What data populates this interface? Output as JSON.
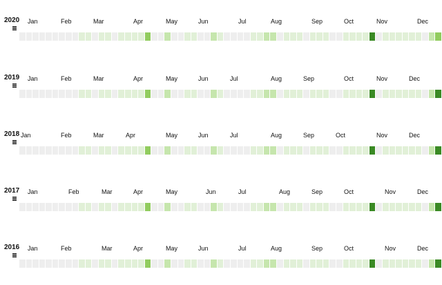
{
  "chart_data": {
    "type": "heatmap",
    "color_scale": [
      "#eeeeee",
      "#e1f0d7",
      "#c6e6ad",
      "#91cc5e",
      "#3a8a24"
    ],
    "years": [
      {
        "year": "2020",
        "months": [
          "Jan",
          "Feb",
          "Mar",
          "Apr",
          "May",
          "Jun",
          "Jul",
          "Aug",
          "Sep",
          "Oct",
          "Nov",
          "Dec"
        ],
        "values": [
          0,
          0,
          0,
          0,
          0,
          0,
          0,
          0,
          0,
          1,
          1,
          0,
          1,
          1,
          0,
          1,
          1,
          1,
          1,
          3,
          0,
          0,
          2,
          0,
          0,
          1,
          1,
          0,
          0,
          2,
          1,
          0,
          0,
          0,
          0,
          1,
          1,
          2,
          2,
          0,
          1,
          1,
          1,
          0,
          1,
          1,
          1,
          0,
          0,
          1,
          1,
          1,
          1,
          4,
          0,
          1,
          1,
          1,
          1,
          1,
          1,
          0,
          2,
          3
        ]
      },
      {
        "year": "2019",
        "months": [
          "Jan",
          "Feb",
          "Mar",
          "Apr",
          "May",
          "Jun",
          "Jul",
          "Aug",
          "Sep",
          "Oct",
          "Nov",
          "Dec"
        ],
        "values": [
          0,
          0,
          0,
          0,
          0,
          0,
          0,
          0,
          0,
          1,
          1,
          0,
          1,
          1,
          0,
          1,
          1,
          1,
          1,
          3,
          0,
          0,
          2,
          0,
          0,
          1,
          1,
          0,
          0,
          2,
          1,
          0,
          0,
          0,
          0,
          1,
          1,
          2,
          2,
          0,
          1,
          1,
          1,
          0,
          1,
          1,
          1,
          0,
          0,
          1,
          1,
          1,
          1,
          4,
          0,
          1,
          1,
          1,
          1,
          1,
          1,
          0,
          2,
          4
        ]
      },
      {
        "year": "2018",
        "months": [
          "Jan",
          "Feb",
          "Mar",
          "Apr",
          "May",
          "Jun",
          "Jul",
          "Aug",
          "Sep",
          "Oct",
          "Nov",
          "Dec"
        ],
        "values": [
          0,
          0,
          0,
          0,
          0,
          0,
          0,
          0,
          0,
          1,
          1,
          0,
          1,
          1,
          0,
          1,
          1,
          1,
          1,
          3,
          0,
          0,
          2,
          0,
          0,
          1,
          1,
          0,
          0,
          2,
          1,
          0,
          0,
          0,
          0,
          1,
          1,
          2,
          2,
          0,
          1,
          1,
          1,
          0,
          1,
          1,
          1,
          0,
          0,
          1,
          1,
          1,
          1,
          4,
          0,
          1,
          1,
          1,
          1,
          1,
          1,
          0,
          2,
          4
        ]
      },
      {
        "year": "2017",
        "months": [
          "Jan",
          "Feb",
          "Mar",
          "Apr",
          "May",
          "Jun",
          "Jul",
          "Aug",
          "Sep",
          "Oct",
          "Nov",
          "Dec"
        ],
        "values": [
          0,
          0,
          0,
          0,
          0,
          0,
          0,
          0,
          0,
          1,
          1,
          0,
          1,
          1,
          0,
          1,
          1,
          1,
          1,
          3,
          0,
          0,
          2,
          0,
          0,
          1,
          1,
          0,
          0,
          2,
          1,
          0,
          0,
          0,
          0,
          1,
          1,
          2,
          2,
          0,
          1,
          1,
          1,
          0,
          1,
          1,
          1,
          0,
          0,
          1,
          1,
          1,
          1,
          4,
          0,
          1,
          1,
          1,
          1,
          1,
          1,
          0,
          2,
          4
        ]
      },
      {
        "year": "2016",
        "months": [
          "Jan",
          "Feb",
          "Mar",
          "Apr",
          "May",
          "Jun",
          "Jul",
          "Aug",
          "Sep",
          "Oct",
          "Nov",
          "Dec"
        ],
        "values": [
          0,
          0,
          0,
          0,
          0,
          0,
          0,
          0,
          0,
          1,
          1,
          0,
          1,
          1,
          0,
          1,
          1,
          1,
          1,
          3,
          0,
          0,
          2,
          0,
          0,
          1,
          1,
          0,
          0,
          2,
          1,
          0,
          0,
          0,
          0,
          1,
          1,
          2,
          2,
          0,
          1,
          1,
          1,
          0,
          1,
          1,
          1,
          0,
          0,
          1,
          1,
          1,
          1,
          4,
          0,
          1,
          1,
          1,
          1,
          1,
          1,
          0,
          2,
          4
        ]
      }
    ]
  }
}
